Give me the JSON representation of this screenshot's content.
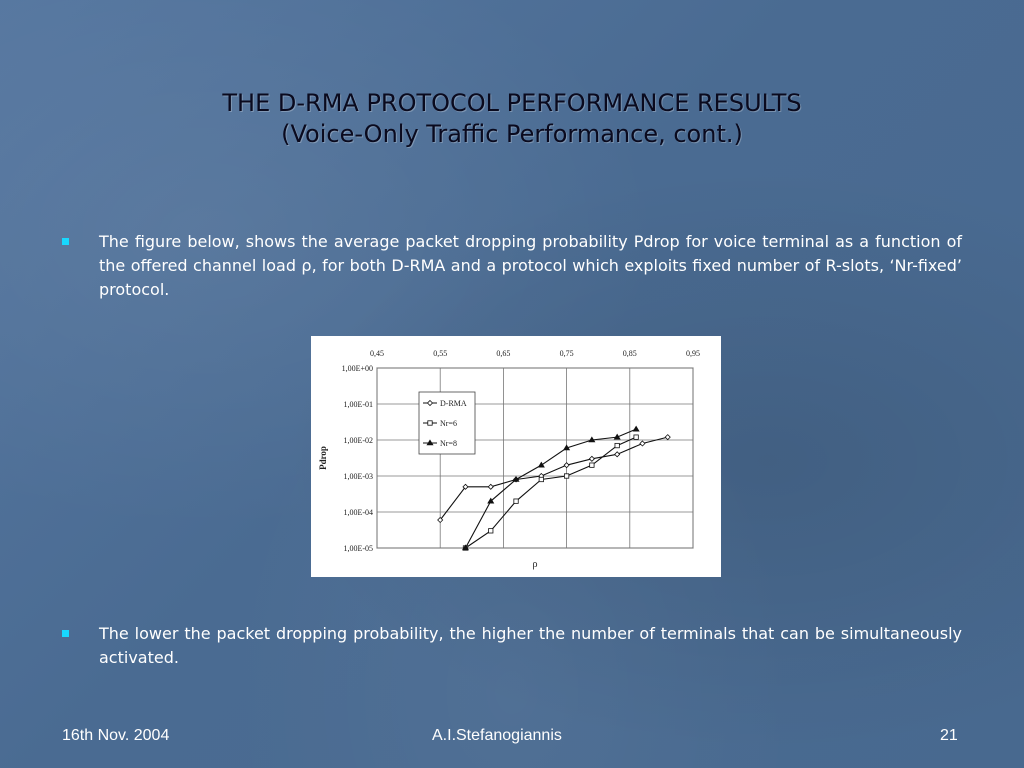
{
  "slide": {
    "title_line1": "THE D-RMA PROTOCOL PERFORMANCE RESULTS",
    "title_line2": "(Voice-Only Traffic Performance, cont.)",
    "bullet1": "The figure below, shows the average packet dropping probability Pdrop for voice terminal as a function of the offered channel load ρ, for both D-RMA and a protocol which exploits fixed number of R-slots, ‘Nr-fixed’ protocol.",
    "bullet2": "The lower the packet dropping probability, the higher the number of terminals that can be simultaneously activated.",
    "accent_color": "#18d8ff"
  },
  "footer": {
    "date": "16th Nov. 2004",
    "author": "A.I.Stefanogiannis",
    "page": "21"
  },
  "chart_data": {
    "type": "line",
    "xlabel": "ρ",
    "ylabel": "Pdrop",
    "xlim": [
      0.45,
      0.95
    ],
    "x_ticks": [
      "0,45",
      "0,55",
      "0,65",
      "0,75",
      "0,85",
      "0,95"
    ],
    "ylog_exp_range": [
      -5,
      0
    ],
    "y_ticks": [
      "1,00E+00",
      "1,00E-01",
      "1,00E-02",
      "1,00E-03",
      "1,00E-04",
      "1,00E-05"
    ],
    "legend_position": "top-left",
    "series": [
      {
        "name": "D-RMA",
        "marker": "diamond",
        "x": [
          0.55,
          0.59,
          0.63,
          0.67,
          0.71,
          0.75,
          0.79,
          0.83,
          0.87,
          0.91
        ],
        "y": [
          6e-05,
          0.0005,
          0.0005,
          0.0008,
          0.001,
          0.002,
          0.003,
          0.004,
          0.008,
          0.012
        ]
      },
      {
        "name": "Nr=6",
        "marker": "square",
        "x": [
          0.59,
          0.63,
          0.67,
          0.71,
          0.75,
          0.79,
          0.83,
          0.86
        ],
        "y": [
          1e-05,
          3e-05,
          0.0002,
          0.0008,
          0.001,
          0.002,
          0.007,
          0.012
        ]
      },
      {
        "name": "Nr=8",
        "marker": "triangle",
        "x": [
          0.59,
          0.63,
          0.67,
          0.71,
          0.75,
          0.79,
          0.83,
          0.86
        ],
        "y": [
          1e-05,
          0.0002,
          0.0008,
          0.002,
          0.006,
          0.01,
          0.012,
          0.02
        ]
      }
    ]
  }
}
